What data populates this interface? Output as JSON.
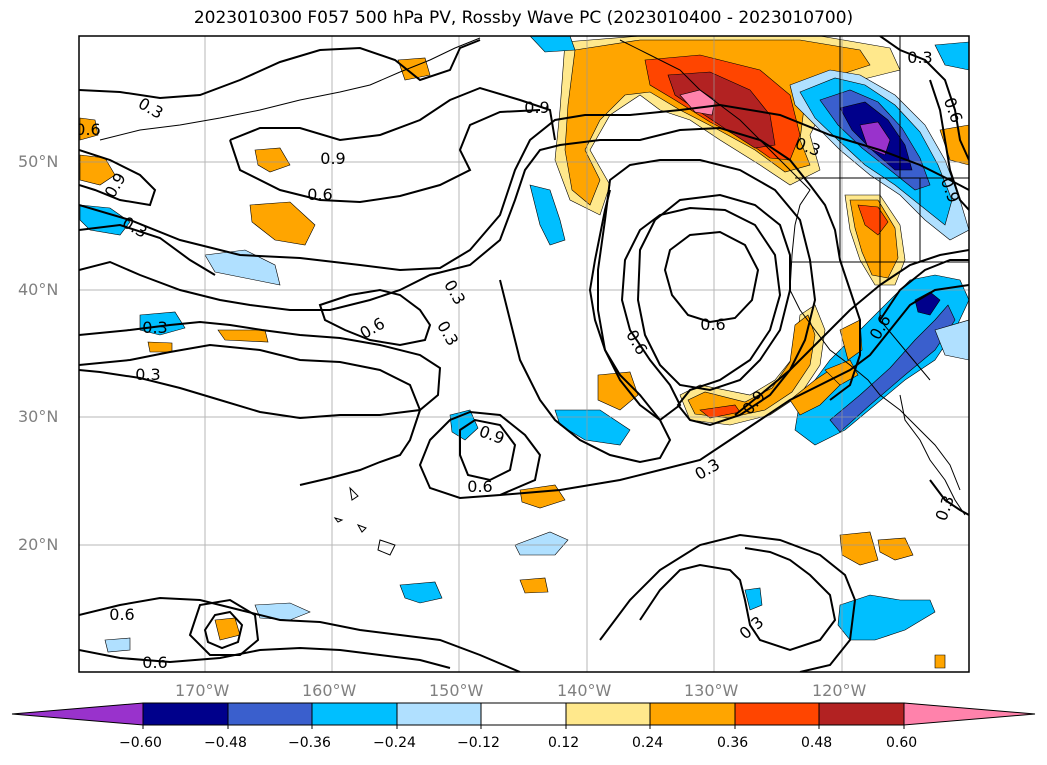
{
  "title": "2023010300 F057 500 hPa PV, Rossby Wave PC (2023010400 - 2023010700)",
  "lat_labels": [
    "50°N",
    "40°N",
    "30°N",
    "20°N"
  ],
  "lon_labels": [
    "170°W",
    "160°W",
    "150°W",
    "140°W",
    "130°W",
    "120°W"
  ],
  "contour_labels": {
    "c1": "0.3",
    "c2": "0.9",
    "c3": "0.9",
    "c4": "0.6",
    "c5": "0.9",
    "c6": "0.3",
    "c7": "0.3",
    "c8": "0.6",
    "c9": "0.3",
    "c10": "0.3",
    "c11": "0.6",
    "c12": "0.9",
    "c13": "0.6",
    "c14": "0.6",
    "c15": "0.9",
    "c16": "0.3",
    "c17": "0.6",
    "c18": "0.3",
    "c19": "0.6",
    "c20": "0.3",
    "c21": "0.3",
    "c22": "0.6",
    "c23": "0.9",
    "c24": "0.3",
    "c25": "0.6",
    "c26": "0.6",
    "c27": "0.3"
  },
  "colorbar": {
    "ticks": [
      "−0.60",
      "−0.48",
      "−0.36",
      "−0.24",
      "−0.12",
      "0.12",
      "0.24",
      "0.36",
      "0.48",
      "0.60"
    ],
    "colors": [
      "#9932cc",
      "#00008b",
      "#3a5fcd",
      "#00bfff",
      "#b0e0ff",
      "#ffffff",
      "#ffe88c",
      "#ffa500",
      "#ff4500",
      "#b22222",
      "#ff82ab"
    ]
  },
  "colors": {
    "purple": "#9932cc",
    "navy": "#00008b",
    "royal": "#3a5fcd",
    "sky": "#00bfff",
    "pale_blue": "#b0e0ff",
    "pale_yellow": "#ffe88c",
    "orange": "#ffa500",
    "red_orange": "#ff4500",
    "firebrick": "#b22222",
    "pink": "#ff82ab"
  }
}
